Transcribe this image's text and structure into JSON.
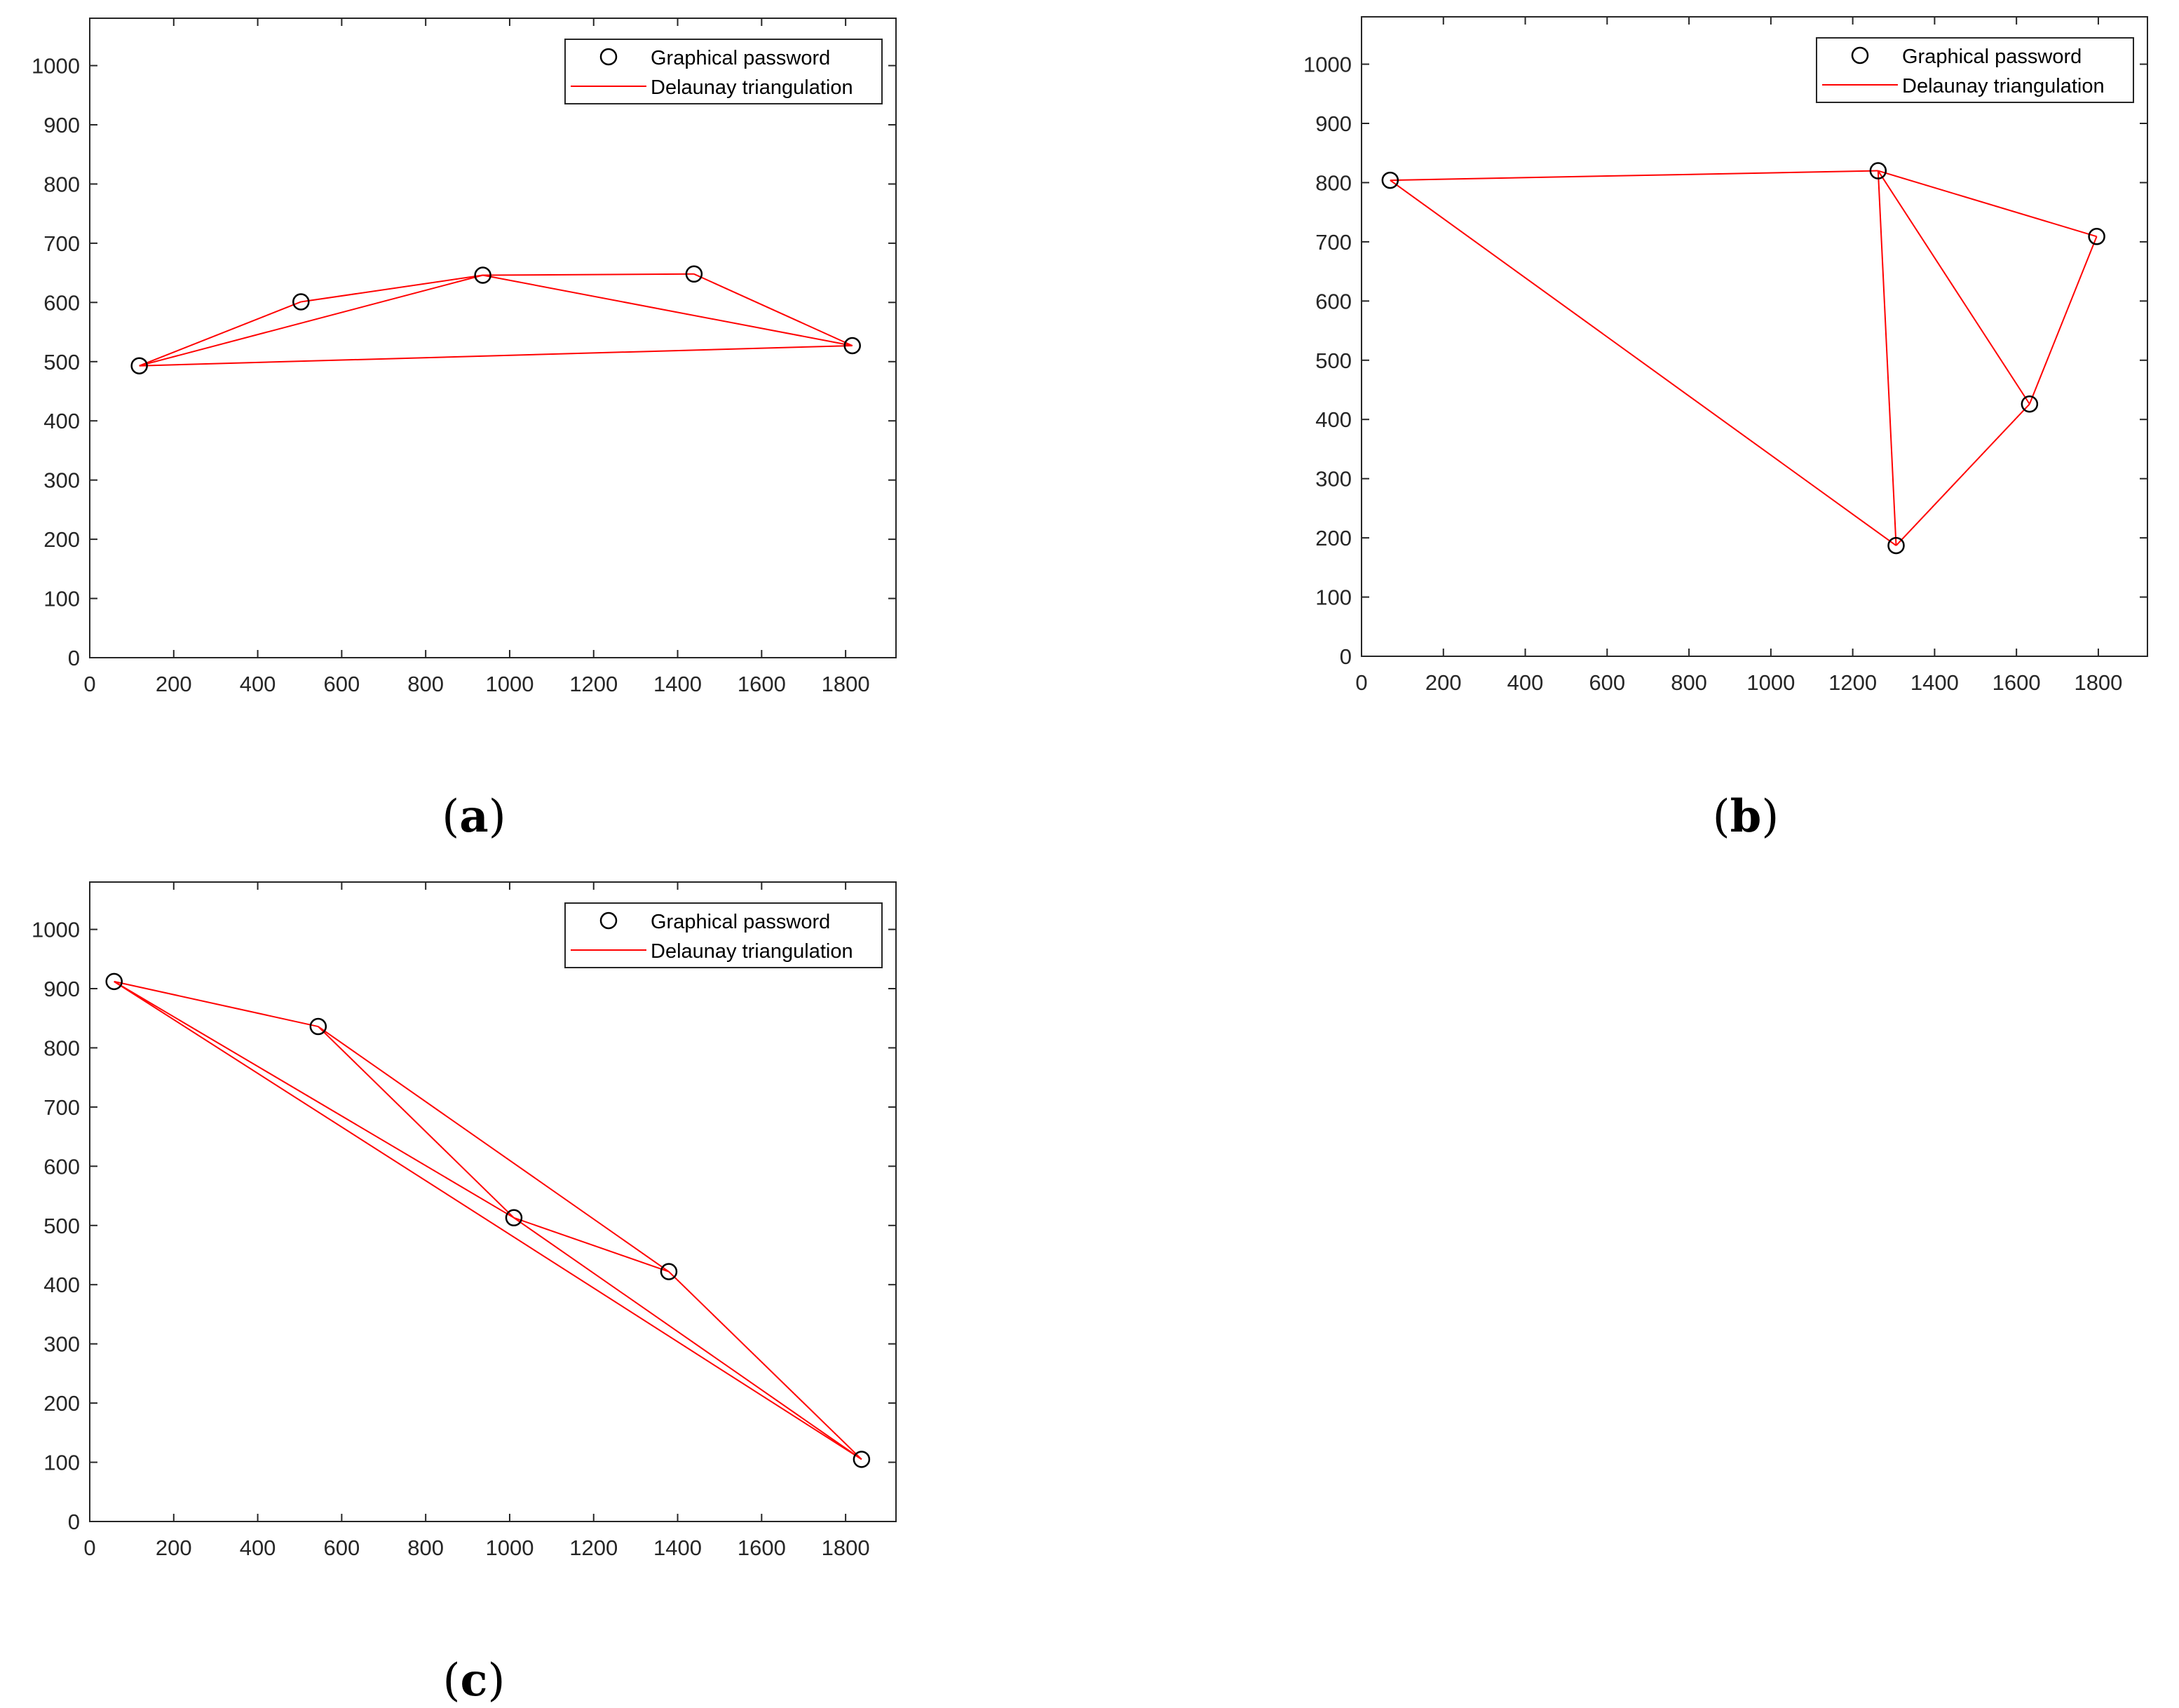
{
  "figure_domain": "Chart",
  "chart_data": [
    {
      "type": "scatter",
      "caption_letter": "a",
      "caption_open": "(",
      "caption_close": ")",
      "xlim": [
        0,
        1920
      ],
      "ylim": [
        0,
        1080
      ],
      "xticks": [
        0,
        200,
        400,
        600,
        800,
        1000,
        1200,
        1400,
        1600,
        1800
      ],
      "yticks": [
        0,
        100,
        200,
        300,
        400,
        500,
        600,
        700,
        800,
        900,
        1000
      ],
      "legend": {
        "location": "top-right",
        "entries": [
          {
            "label": "Graphical password",
            "marker": "circle"
          },
          {
            "label": "Delaunay triangulation",
            "marker": "line"
          }
        ]
      },
      "points": [
        {
          "x": 118,
          "y": 493
        },
        {
          "x": 503,
          "y": 601
        },
        {
          "x": 936,
          "y": 646
        },
        {
          "x": 1439,
          "y": 648
        },
        {
          "x": 1816,
          "y": 527
        }
      ],
      "triangles": [
        [
          0,
          1,
          2
        ],
        [
          0,
          2,
          4
        ],
        [
          2,
          3,
          4
        ]
      ]
    },
    {
      "type": "scatter",
      "caption_letter": "b",
      "caption_open": "(",
      "caption_close": ")",
      "xlim": [
        0,
        1920
      ],
      "ylim": [
        0,
        1080
      ],
      "xticks": [
        0,
        200,
        400,
        600,
        800,
        1000,
        1200,
        1400,
        1600,
        1800
      ],
      "yticks": [
        0,
        100,
        200,
        300,
        400,
        500,
        600,
        700,
        800,
        900,
        1000
      ],
      "legend": {
        "location": "top-right",
        "entries": [
          {
            "label": "Graphical password",
            "marker": "circle"
          },
          {
            "label": "Delaunay triangulation",
            "marker": "line"
          }
        ]
      },
      "points": [
        {
          "x": 70,
          "y": 804
        },
        {
          "x": 1262,
          "y": 820
        },
        {
          "x": 1796,
          "y": 709
        },
        {
          "x": 1632,
          "y": 426
        },
        {
          "x": 1306,
          "y": 187
        }
      ],
      "triangles": [
        [
          0,
          1,
          4
        ],
        [
          1,
          4,
          3
        ],
        [
          1,
          3,
          2
        ]
      ]
    },
    {
      "type": "scatter",
      "caption_letter": "c",
      "caption_open": "(",
      "caption_close": ")",
      "xlim": [
        0,
        1920
      ],
      "ylim": [
        0,
        1080
      ],
      "xticks": [
        0,
        200,
        400,
        600,
        800,
        1000,
        1200,
        1400,
        1600,
        1800
      ],
      "yticks": [
        0,
        100,
        200,
        300,
        400,
        500,
        600,
        700,
        800,
        900,
        1000
      ],
      "legend": {
        "location": "top-right",
        "entries": [
          {
            "label": "Graphical password",
            "marker": "circle"
          },
          {
            "label": "Delaunay triangulation",
            "marker": "line"
          }
        ]
      },
      "points": [
        {
          "x": 58,
          "y": 912
        },
        {
          "x": 544,
          "y": 836
        },
        {
          "x": 1010,
          "y": 513
        },
        {
          "x": 1379,
          "y": 422
        },
        {
          "x": 1838,
          "y": 105
        }
      ],
      "triangles": [
        [
          0,
          1,
          2
        ],
        [
          0,
          2,
          4
        ],
        [
          1,
          3,
          2
        ],
        [
          2,
          3,
          4
        ]
      ]
    }
  ],
  "colors": {
    "triangulation": "#ff0000",
    "marker": "#000000",
    "axis": "#262626",
    "legend_border": "#262626"
  }
}
